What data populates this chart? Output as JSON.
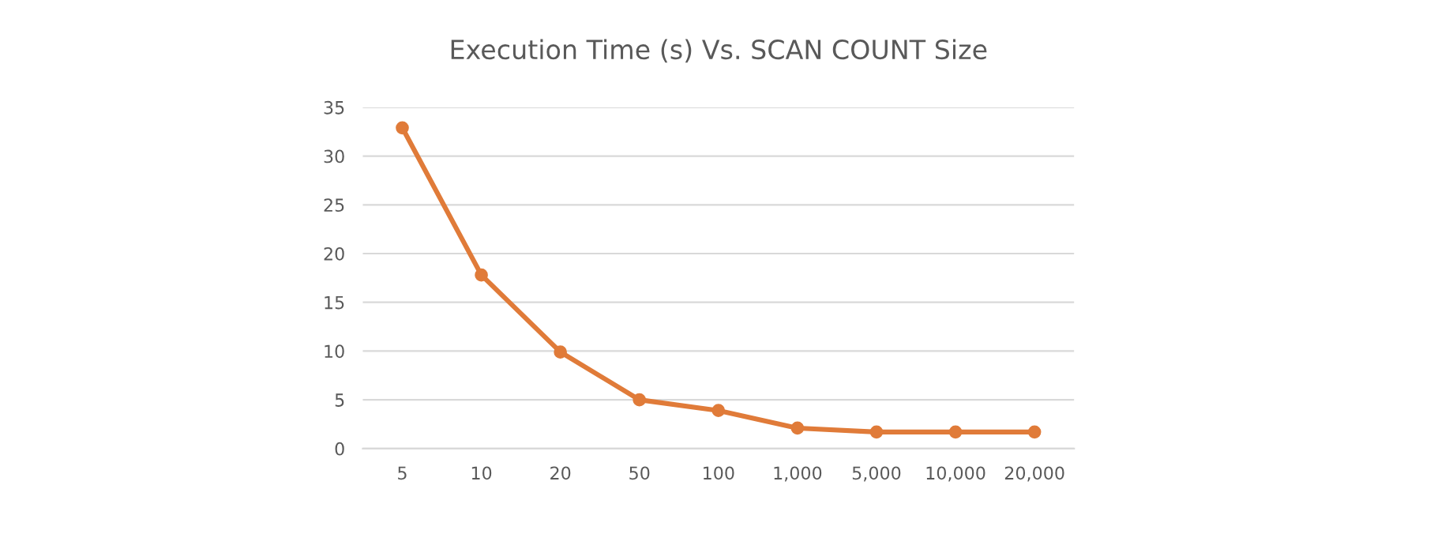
{
  "chart_data": {
    "type": "line",
    "title": "Execution Time (s) Vs. SCAN COUNT Size",
    "categories": [
      "5",
      "10",
      "20",
      "50",
      "100",
      "1,000",
      "5,000",
      "10,000",
      "20,000"
    ],
    "series": [
      {
        "color": "#e07b39",
        "values": [
          32.9,
          17.8,
          9.9,
          5.0,
          3.9,
          2.1,
          1.7,
          1.7,
          1.7
        ]
      }
    ],
    "ylim": [
      0,
      35
    ],
    "yticks": [
      0,
      5,
      10,
      15,
      20,
      25,
      30,
      35
    ],
    "grid": "y",
    "marker": "circle",
    "line_style": "solid",
    "legend": false
  }
}
